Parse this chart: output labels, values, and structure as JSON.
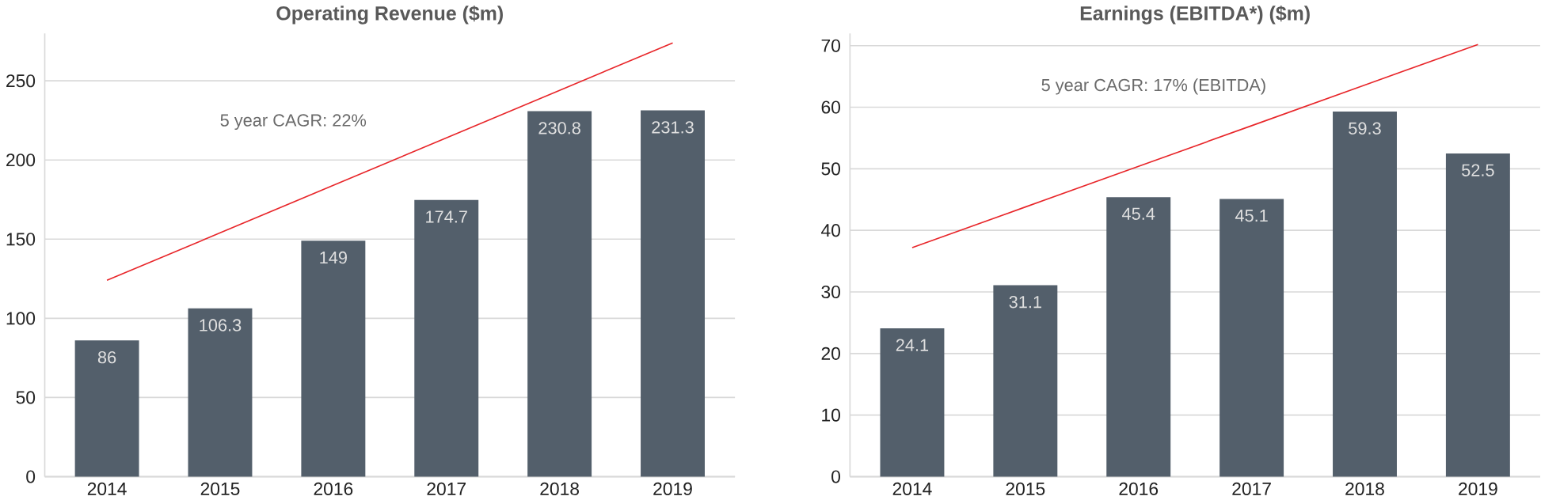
{
  "chart_data": [
    {
      "type": "bar",
      "title": "Operating Revenue ($m)",
      "categories": [
        "2014",
        "2015",
        "2016",
        "2017",
        "2018",
        "2019"
      ],
      "series": [
        {
          "color": "#535f6b",
          "values": [
            86,
            106.3,
            149,
            174.7,
            230.8,
            231.3
          ],
          "value_labels": [
            "86",
            "106.3",
            "149",
            "174.7",
            "230.8",
            "231.3"
          ]
        },
        {
          "type": "line",
          "color": "#e8262a",
          "values": [
            124,
            154,
            184,
            214,
            244,
            274
          ]
        }
      ],
      "ylim": [
        0,
        280
      ],
      "yticks": [
        0,
        50,
        100,
        150,
        200,
        250
      ],
      "grid": "y",
      "annotations": [
        "5 year CAGR: 22%"
      ]
    },
    {
      "type": "bar",
      "title": "Earnings (EBITDA*) ($m)",
      "categories": [
        "2014",
        "2015",
        "2016",
        "2017",
        "2018",
        "2019"
      ],
      "series": [
        {
          "color": "#535f6b",
          "values": [
            24.1,
            31.1,
            45.4,
            45.1,
            59.3,
            52.5
          ],
          "value_labels": [
            "24.1",
            "31.1",
            "45.4",
            "45.1",
            "59.3",
            "52.5"
          ]
        },
        {
          "type": "line",
          "color": "#e8262a",
          "values": [
            37.2,
            43.8,
            50.4,
            57,
            63.6,
            70.2
          ]
        }
      ],
      "ylim": [
        0,
        72
      ],
      "yticks": [
        0,
        10,
        20,
        30,
        40,
        50,
        60,
        70
      ],
      "grid": "y",
      "annotations": [
        "5 year CAGR: 17% (EBITDA)"
      ]
    }
  ]
}
